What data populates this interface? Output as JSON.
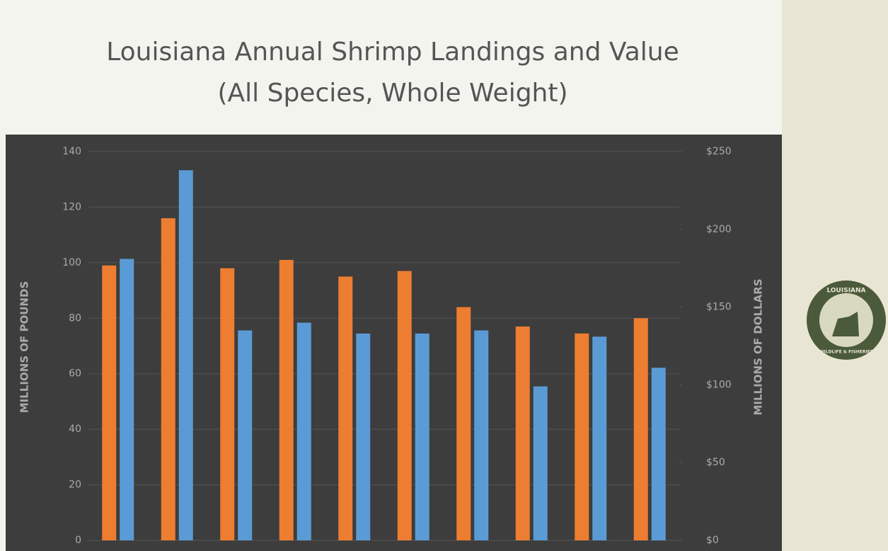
{
  "chart_data": {
    "type": "bar",
    "title": "Louisiana Annual Shrimp Landings and Value",
    "subtitle": "(All Species, Whole Weight)",
    "ylabel": "MILLIONS OF POUNDS",
    "y2label": "MILLIONS OF DOLLARS",
    "categories": [
      null,
      null,
      null,
      null,
      null,
      null,
      null,
      null,
      null,
      null
    ],
    "series": [
      {
        "color": "#ed7d31",
        "values": [
          99,
          116,
          98,
          101,
          95,
          97,
          84,
          77,
          74.5,
          80
        ]
      },
      {
        "color": "#5b9bd5",
        "axis": "y2",
        "values": [
          181,
          238,
          135,
          140,
          133,
          133,
          135,
          99,
          131,
          111
        ]
      }
    ],
    "ylim": [
      0,
      140
    ],
    "yticks": [
      0,
      20,
      40,
      60,
      80,
      100,
      120,
      140
    ],
    "y2lim": [
      0,
      250
    ],
    "y2ticks": [
      {
        "value": 0,
        "label": "$0"
      },
      {
        "value": 50,
        "label": "$50"
      },
      {
        "value": 100,
        "label": "$100"
      },
      {
        "value": 150,
        "label": "$150"
      },
      {
        "value": 200,
        "label": "$200"
      },
      {
        "value": 250,
        "label": "$250"
      }
    ],
    "grid": true
  },
  "logo": {
    "top": "LOUISIANA",
    "bottom": "WILDLIFE & FISHERIES"
  }
}
